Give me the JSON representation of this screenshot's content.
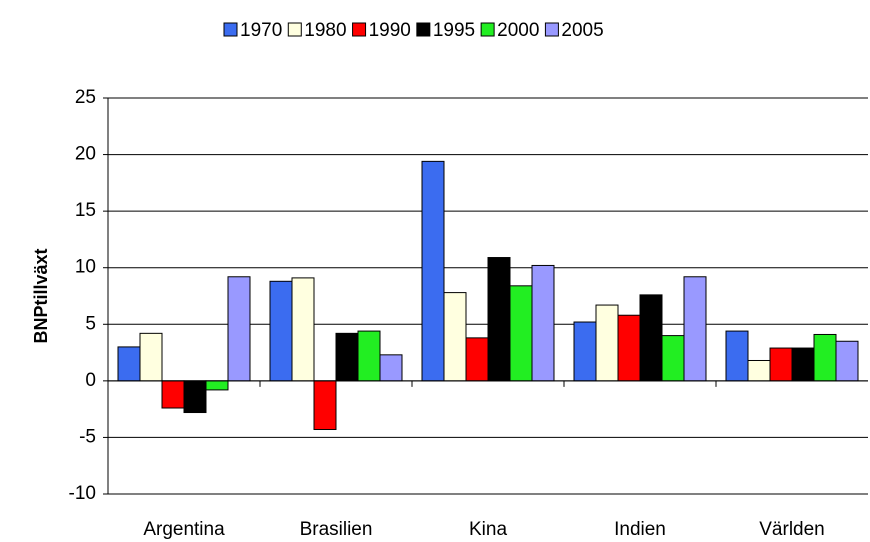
{
  "chart_data": {
    "type": "bar",
    "categories": [
      "Argentina",
      "Brasilien",
      "Kina",
      "Indien",
      "Världen"
    ],
    "series": [
      {
        "name": "1970",
        "color": "#3b6cf0",
        "values": [
          3.0,
          8.8,
          19.4,
          5.2,
          4.4
        ]
      },
      {
        "name": "1980",
        "color": "#ffffe0",
        "values": [
          4.2,
          9.1,
          7.8,
          6.7,
          1.8
        ]
      },
      {
        "name": "1990",
        "color": "#ff0000",
        "values": [
          -2.4,
          -4.3,
          3.8,
          5.8,
          2.9
        ]
      },
      {
        "name": "1995",
        "color": "#000000",
        "values": [
          -2.8,
          4.2,
          10.9,
          7.6,
          2.9
        ]
      },
      {
        "name": "2000",
        "color": "#22ee22",
        "values": [
          -0.8,
          4.4,
          8.4,
          4.0,
          4.1
        ]
      },
      {
        "name": "2005",
        "color": "#9999ff",
        "values": [
          9.2,
          2.3,
          10.2,
          9.2,
          3.5
        ]
      }
    ],
    "ylabel": "BNPtillväxt",
    "ylim": [
      -10,
      25
    ],
    "yticks": [
      -10,
      -5,
      0,
      5,
      10,
      15,
      20,
      25
    ],
    "grid": true,
    "legend": "top"
  }
}
